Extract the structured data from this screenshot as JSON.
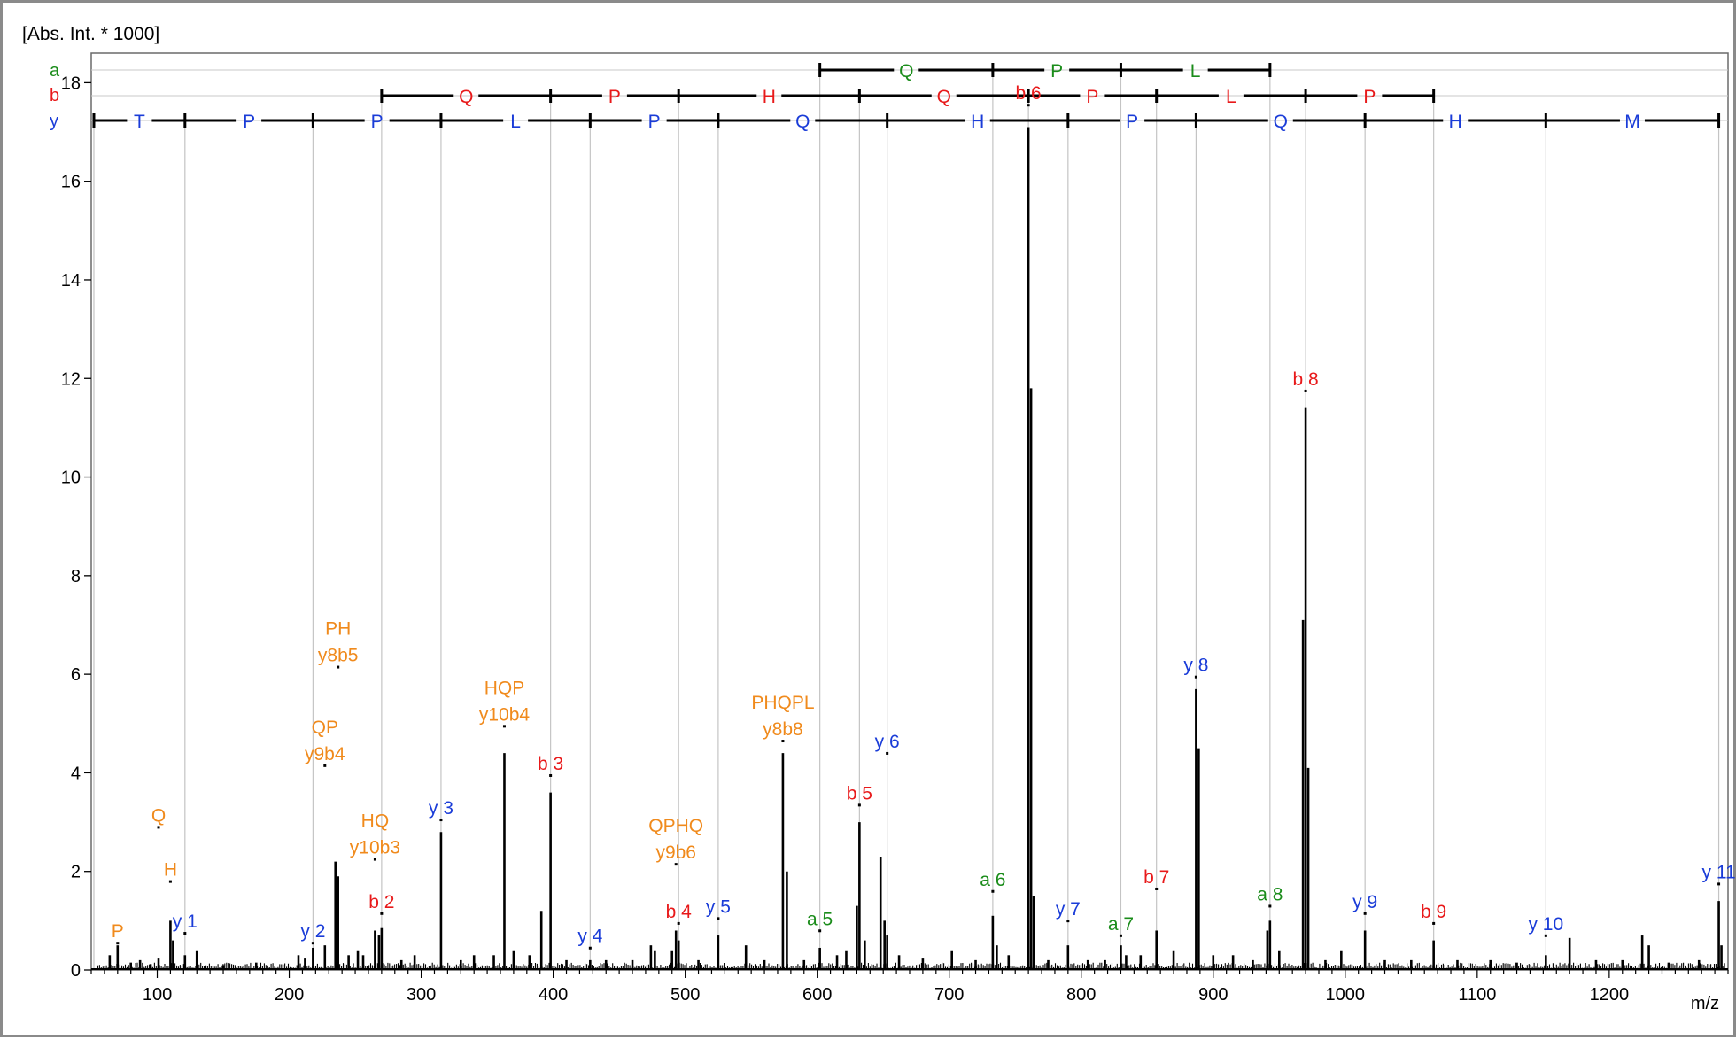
{
  "chart_data": {
    "type": "bar",
    "ylabel": "[Abs. Int. * 1000]",
    "xlabel": "m/z",
    "xlim": [
      50,
      1290
    ],
    "ylim": [
      0,
      18.6
    ],
    "xticks": [
      100,
      200,
      300,
      400,
      500,
      600,
      700,
      800,
      900,
      1000,
      1100,
      1200
    ],
    "yticks": [
      0,
      2,
      4,
      6,
      8,
      10,
      12,
      14,
      16,
      18
    ],
    "ion_colors": {
      "a": "#1a8c1a",
      "b": "#e8191a",
      "y": "#1a3cd8",
      "internal": "#f08a1c"
    },
    "series_labels": [
      {
        "text": "a",
        "color": "#1a8c1a"
      },
      {
        "text": "b",
        "color": "#e8191a"
      },
      {
        "text": "y",
        "color": "#1a3cd8"
      }
    ],
    "ladders": {
      "a": {
        "color": "#1a8c1a",
        "positions": [
          602,
          733,
          830,
          943
        ],
        "residues": [
          "Q",
          "P",
          "L"
        ]
      },
      "b": {
        "color": "#e8191a",
        "positions": [
          270,
          398,
          495,
          632,
          760,
          857,
          970,
          1067
        ],
        "residues": [
          "Q",
          "P",
          "H",
          "Q",
          "P",
          "L",
          "P"
        ]
      },
      "y": {
        "color": "#1a3cd8",
        "positions": [
          52,
          121,
          218,
          315,
          428,
          525,
          653,
          790,
          887,
          1015,
          1152,
          1283
        ],
        "residues": [
          "T",
          "P",
          "P",
          "L",
          "P",
          "Q",
          "H",
          "P",
          "Q",
          "H",
          "M"
        ]
      }
    },
    "peaks": [
      {
        "x": 64,
        "y": 0.3
      },
      {
        "x": 70,
        "y": 0.5
      },
      {
        "x": 80,
        "y": 0.15
      },
      {
        "x": 87,
        "y": 0.2
      },
      {
        "x": 95,
        "y": 0.12
      },
      {
        "x": 101,
        "y": 0.25
      },
      {
        "x": 110,
        "y": 1.0
      },
      {
        "x": 112,
        "y": 0.6
      },
      {
        "x": 121,
        "y": 0.3
      },
      {
        "x": 130,
        "y": 0.4
      },
      {
        "x": 150,
        "y": 0.1
      },
      {
        "x": 175,
        "y": 0.15
      },
      {
        "x": 207,
        "y": 0.3
      },
      {
        "x": 212,
        "y": 0.25
      },
      {
        "x": 218,
        "y": 0.45
      },
      {
        "x": 227,
        "y": 0.5
      },
      {
        "x": 235,
        "y": 2.2
      },
      {
        "x": 237,
        "y": 1.9
      },
      {
        "x": 245,
        "y": 0.3
      },
      {
        "x": 252,
        "y": 0.4
      },
      {
        "x": 256,
        "y": 0.3
      },
      {
        "x": 265,
        "y": 0.8
      },
      {
        "x": 268,
        "y": 0.7
      },
      {
        "x": 270,
        "y": 0.85
      },
      {
        "x": 285,
        "y": 0.2
      },
      {
        "x": 295,
        "y": 0.3
      },
      {
        "x": 315,
        "y": 2.8
      },
      {
        "x": 330,
        "y": 0.2
      },
      {
        "x": 340,
        "y": 0.3
      },
      {
        "x": 355,
        "y": 0.3
      },
      {
        "x": 363,
        "y": 4.4
      },
      {
        "x": 370,
        "y": 0.4
      },
      {
        "x": 382,
        "y": 0.3
      },
      {
        "x": 391,
        "y": 1.2
      },
      {
        "x": 398,
        "y": 3.6
      },
      {
        "x": 410,
        "y": 0.2
      },
      {
        "x": 428,
        "y": 0.2
      },
      {
        "x": 440,
        "y": 0.2
      },
      {
        "x": 460,
        "y": 0.2
      },
      {
        "x": 474,
        "y": 0.5
      },
      {
        "x": 477,
        "y": 0.4
      },
      {
        "x": 490,
        "y": 0.4
      },
      {
        "x": 493,
        "y": 0.8
      },
      {
        "x": 495,
        "y": 0.6
      },
      {
        "x": 510,
        "y": 0.2
      },
      {
        "x": 525,
        "y": 0.7
      },
      {
        "x": 546,
        "y": 0.5
      },
      {
        "x": 560,
        "y": 0.2
      },
      {
        "x": 574,
        "y": 4.4
      },
      {
        "x": 577,
        "y": 2.0
      },
      {
        "x": 590,
        "y": 0.2
      },
      {
        "x": 602,
        "y": 0.45
      },
      {
        "x": 615,
        "y": 0.3
      },
      {
        "x": 622,
        "y": 0.4
      },
      {
        "x": 630,
        "y": 1.3
      },
      {
        "x": 632,
        "y": 3.0
      },
      {
        "x": 636,
        "y": 0.6
      },
      {
        "x": 648,
        "y": 2.3
      },
      {
        "x": 651,
        "y": 1.0
      },
      {
        "x": 653,
        "y": 0.7
      },
      {
        "x": 662,
        "y": 0.3
      },
      {
        "x": 680,
        "y": 0.25
      },
      {
        "x": 702,
        "y": 0.4
      },
      {
        "x": 720,
        "y": 0.2
      },
      {
        "x": 733,
        "y": 1.1
      },
      {
        "x": 736,
        "y": 0.5
      },
      {
        "x": 745,
        "y": 0.3
      },
      {
        "x": 760,
        "y": 17.1
      },
      {
        "x": 762,
        "y": 11.8
      },
      {
        "x": 764,
        "y": 1.5
      },
      {
        "x": 775,
        "y": 0.2
      },
      {
        "x": 790,
        "y": 0.5
      },
      {
        "x": 805,
        "y": 0.2
      },
      {
        "x": 818,
        "y": 0.2
      },
      {
        "x": 830,
        "y": 0.5
      },
      {
        "x": 834,
        "y": 0.3
      },
      {
        "x": 845,
        "y": 0.3
      },
      {
        "x": 857,
        "y": 0.8
      },
      {
        "x": 870,
        "y": 0.4
      },
      {
        "x": 887,
        "y": 5.7
      },
      {
        "x": 889,
        "y": 4.5
      },
      {
        "x": 900,
        "y": 0.3
      },
      {
        "x": 915,
        "y": 0.3
      },
      {
        "x": 930,
        "y": 0.2
      },
      {
        "x": 941,
        "y": 0.8
      },
      {
        "x": 943,
        "y": 1.0
      },
      {
        "x": 950,
        "y": 0.4
      },
      {
        "x": 968,
        "y": 7.1
      },
      {
        "x": 970,
        "y": 11.4
      },
      {
        "x": 972,
        "y": 4.1
      },
      {
        "x": 985,
        "y": 0.2
      },
      {
        "x": 997,
        "y": 0.4
      },
      {
        "x": 1015,
        "y": 0.8
      },
      {
        "x": 1030,
        "y": 0.2
      },
      {
        "x": 1050,
        "y": 0.2
      },
      {
        "x": 1067,
        "y": 0.6
      },
      {
        "x": 1085,
        "y": 0.2
      },
      {
        "x": 1110,
        "y": 0.2
      },
      {
        "x": 1130,
        "y": 0.15
      },
      {
        "x": 1152,
        "y": 0.3
      },
      {
        "x": 1170,
        "y": 0.65
      },
      {
        "x": 1190,
        "y": 0.2
      },
      {
        "x": 1210,
        "y": 0.2
      },
      {
        "x": 1225,
        "y": 0.7
      },
      {
        "x": 1230,
        "y": 0.5
      },
      {
        "x": 1245,
        "y": 0.15
      },
      {
        "x": 1268,
        "y": 0.2
      },
      {
        "x": 1283,
        "y": 1.4
      },
      {
        "x": 1285,
        "y": 0.5
      }
    ],
    "annotations": [
      {
        "lines": [
          "P"
        ],
        "x": 70,
        "y": 0.5,
        "type": "internal"
      },
      {
        "lines": [
          "H"
        ],
        "x": 110,
        "y": 1.75,
        "type": "internal"
      },
      {
        "lines": [
          "Q"
        ],
        "x": 101,
        "y": 2.85,
        "type": "internal"
      },
      {
        "lines": [
          "y 1"
        ],
        "x": 121,
        "y": 0.7,
        "type": "y"
      },
      {
        "lines": [
          "y 2"
        ],
        "x": 218,
        "y": 0.5,
        "type": "y"
      },
      {
        "lines": [
          "QP",
          "y9b4"
        ],
        "x": 227,
        "y": 4.1,
        "type": "internal"
      },
      {
        "lines": [
          "PH",
          "y8b5"
        ],
        "x": 237,
        "y": 6.1,
        "type": "internal"
      },
      {
        "lines": [
          "HQ",
          "y10b3"
        ],
        "x": 265,
        "y": 2.2,
        "type": "internal"
      },
      {
        "lines": [
          "b 2"
        ],
        "x": 270,
        "y": 1.1,
        "type": "b"
      },
      {
        "lines": [
          "y 3"
        ],
        "x": 315,
        "y": 3.0,
        "type": "y"
      },
      {
        "lines": [
          "HQP",
          "y10b4"
        ],
        "x": 363,
        "y": 4.9,
        "type": "internal"
      },
      {
        "lines": [
          "b 3"
        ],
        "x": 398,
        "y": 3.9,
        "type": "b"
      },
      {
        "lines": [
          "y 4"
        ],
        "x": 428,
        "y": 0.4,
        "type": "y"
      },
      {
        "lines": [
          "QPHQ",
          "y9b6"
        ],
        "x": 493,
        "y": 2.1,
        "type": "internal"
      },
      {
        "lines": [
          "b 4"
        ],
        "x": 495,
        "y": 0.9,
        "type": "b"
      },
      {
        "lines": [
          "y 5"
        ],
        "x": 525,
        "y": 1.0,
        "type": "y"
      },
      {
        "lines": [
          "PHQPL",
          "y8b8"
        ],
        "x": 574,
        "y": 4.6,
        "type": "internal"
      },
      {
        "lines": [
          "a 5"
        ],
        "x": 602,
        "y": 0.75,
        "type": "a"
      },
      {
        "lines": [
          "b 5"
        ],
        "x": 632,
        "y": 3.3,
        "type": "b"
      },
      {
        "lines": [
          "y 6"
        ],
        "x": 653,
        "y": 4.35,
        "type": "y"
      },
      {
        "lines": [
          "a 6"
        ],
        "x": 733,
        "y": 1.55,
        "type": "a"
      },
      {
        "lines": [
          "b 6"
        ],
        "x": 760,
        "y": 17.5,
        "type": "b"
      },
      {
        "lines": [
          "y 7"
        ],
        "x": 790,
        "y": 0.95,
        "type": "y"
      },
      {
        "lines": [
          "a 7"
        ],
        "x": 830,
        "y": 0.65,
        "type": "a"
      },
      {
        "lines": [
          "b 7"
        ],
        "x": 857,
        "y": 1.6,
        "type": "b"
      },
      {
        "lines": [
          "y 8"
        ],
        "x": 887,
        "y": 5.9,
        "type": "y"
      },
      {
        "lines": [
          "a 8"
        ],
        "x": 943,
        "y": 1.25,
        "type": "a"
      },
      {
        "lines": [
          "b 8"
        ],
        "x": 970,
        "y": 11.7,
        "type": "b"
      },
      {
        "lines": [
          "y 9"
        ],
        "x": 1015,
        "y": 1.1,
        "type": "y"
      },
      {
        "lines": [
          "b 9"
        ],
        "x": 1067,
        "y": 0.9,
        "type": "b"
      },
      {
        "lines": [
          "y 10"
        ],
        "x": 1152,
        "y": 0.65,
        "type": "y"
      },
      {
        "lines": [
          "y 11"
        ],
        "x": 1283,
        "y": 1.7,
        "type": "y"
      }
    ]
  }
}
